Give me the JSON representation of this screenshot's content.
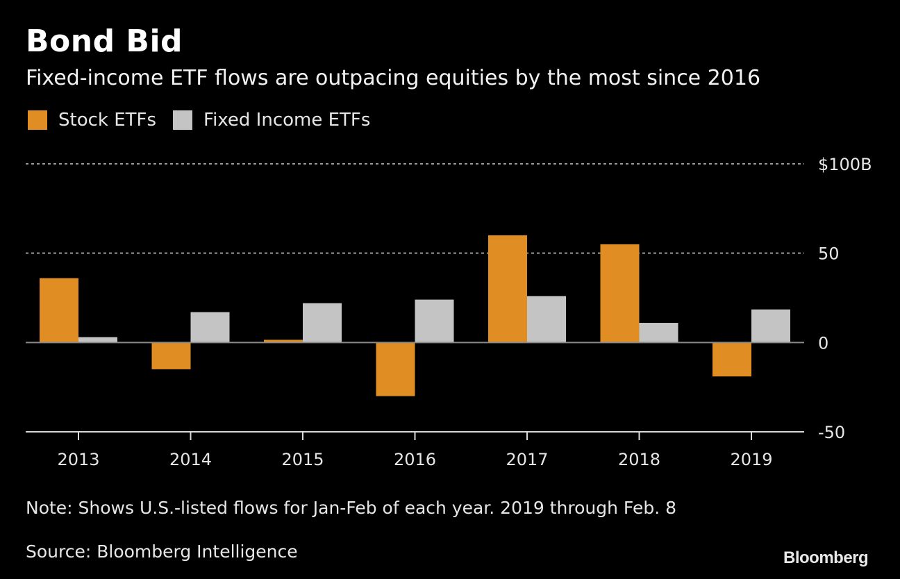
{
  "title": "Bond Bid",
  "subtitle": "Fixed-income ETF flows are outpacing equities by the most since 2016",
  "legend": [
    {
      "label": "Stock ETFs",
      "color": "#e08e24"
    },
    {
      "label": "Fixed Income ETFs",
      "color": "#c4c4c4"
    }
  ],
  "note": "Note: Shows U.S.-listed flows for Jan-Feb of each year. 2019 through Feb. 8",
  "source": "Source: Bloomberg Intelligence",
  "brand": "Bloomberg",
  "chart_data": {
    "type": "bar",
    "title": "Bond Bid",
    "subtitle": "Fixed-income ETF flows are outpacing equities by the most since 2016",
    "xlabel": "",
    "ylabel": "",
    "categories": [
      "2013",
      "2014",
      "2015",
      "2016",
      "2017",
      "2018",
      "2019"
    ],
    "series": [
      {
        "name": "Stock ETFs",
        "color": "#e08e24",
        "values": [
          36,
          -15,
          1.5,
          -30,
          60,
          55,
          -19
        ]
      },
      {
        "name": "Fixed Income ETFs",
        "color": "#c4c4c4",
        "values": [
          3,
          17,
          22,
          24,
          26,
          11,
          18.5
        ]
      }
    ],
    "ylim": [
      -50,
      100
    ],
    "yticks": [
      {
        "value": 100,
        "label": "$100B"
      },
      {
        "value": 50,
        "label": "50"
      },
      {
        "value": 0,
        "label": "0"
      },
      {
        "value": -50,
        "label": "-50"
      }
    ],
    "grid": true,
    "legend_position": "top-left",
    "y_axis_side": "right"
  }
}
